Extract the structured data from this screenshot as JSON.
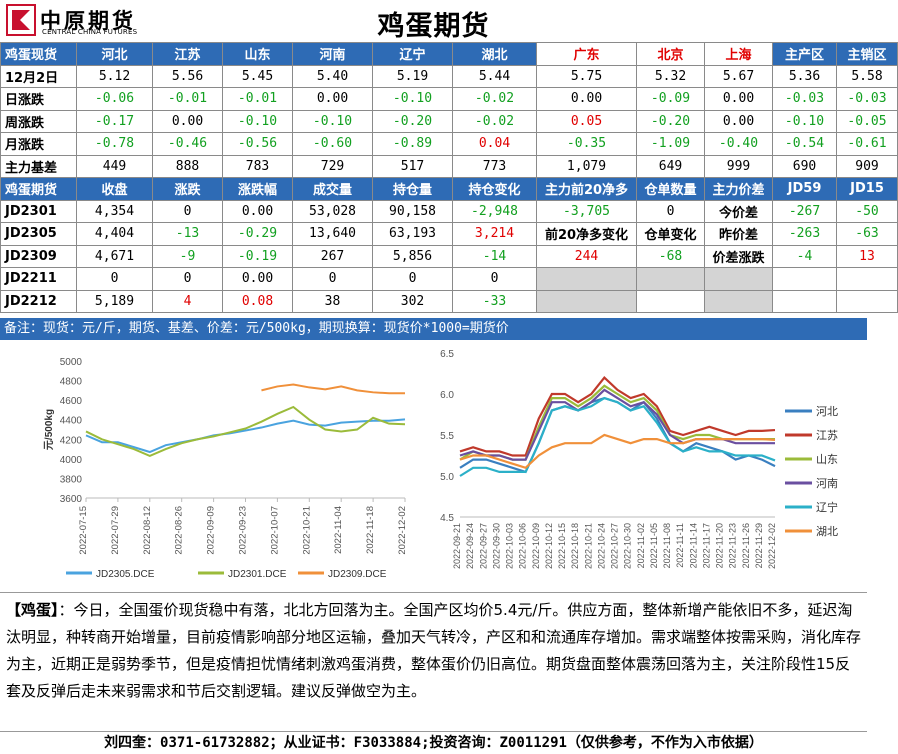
{
  "header": {
    "logo_cn": "中原期货",
    "logo_en": "CENTRAL CHINA FUTURES",
    "title": "鸡蛋期货"
  },
  "colors": {
    "header_blue": "#2e6bb5",
    "up": "#e00000",
    "down": "#12a020",
    "gray": "#d4d4d4"
  },
  "spot": {
    "header_label": "鸡蛋现货",
    "regions": [
      "河北",
      "江苏",
      "山东",
      "河南",
      "辽宁",
      "湖北",
      "广东",
      "北京",
      "上海",
      "主产区",
      "主销区"
    ],
    "red_regions": [
      "广东",
      "北京",
      "上海"
    ],
    "rows": [
      {
        "label": "12月2日",
        "values": [
          "5.12",
          "5.56",
          "5.45",
          "5.40",
          "5.19",
          "5.44",
          "5.75",
          "5.32",
          "5.67",
          "5.36",
          "5.58"
        ],
        "colored": false
      },
      {
        "label": "日涨跌",
        "values": [
          "-0.06",
          "-0.01",
          "-0.01",
          "0.00",
          "-0.10",
          "-0.02",
          "0.00",
          "-0.09",
          "0.00",
          "-0.03",
          "-0.03"
        ],
        "colored": true
      },
      {
        "label": "周涨跌",
        "values": [
          "-0.17",
          "0.00",
          "-0.10",
          "-0.10",
          "-0.20",
          "-0.02",
          "0.05",
          "-0.20",
          "0.00",
          "-0.10",
          "-0.05"
        ],
        "colored": true
      },
      {
        "label": "月涨跌",
        "values": [
          "-0.78",
          "-0.46",
          "-0.56",
          "-0.60",
          "-0.89",
          "0.04",
          "-0.35",
          "-1.09",
          "-0.40",
          "-0.54",
          "-0.61"
        ],
        "colored": true
      },
      {
        "label": "主力基差",
        "values": [
          "449",
          "888",
          "783",
          "729",
          "517",
          "773",
          "1,079",
          "649",
          "999",
          "690",
          "909"
        ],
        "colored": false
      }
    ]
  },
  "futures": {
    "headers": [
      "鸡蛋期货",
      "收盘",
      "涨跌",
      "涨跌幅",
      "成交量",
      "持仓量",
      "持仓变化",
      "主力前20净多",
      "仓单数量",
      "主力价差",
      "JD59",
      "JD15"
    ],
    "rows": [
      {
        "contract": "JD2301",
        "close": "4,354",
        "chg": "0",
        "pct": "0.00",
        "vol": "53,028",
        "oi": "90,158",
        "oi_chg": "-2,948",
        "net20": "-3,705",
        "warrant": "0",
        "label": "今价差",
        "jd59": "-267",
        "jd15": "-50"
      },
      {
        "contract": "JD2305",
        "close": "4,404",
        "chg": "-13",
        "pct": "-0.29",
        "vol": "13,640",
        "oi": "63,193",
        "oi_chg": "3,214",
        "net20": "前20净多变化",
        "warrant": "仓单变化",
        "label": "昨价差",
        "jd59": "-263",
        "jd15": "-63"
      },
      {
        "contract": "JD2309",
        "close": "4,671",
        "chg": "-9",
        "pct": "-0.19",
        "vol": "267",
        "oi": "5,856",
        "oi_chg": "-14",
        "net20": "244",
        "warrant": "-68",
        "label": "价差涨跌",
        "jd59": "-4",
        "jd15": "13"
      },
      {
        "contract": "JD2211",
        "close": "0",
        "chg": "0",
        "pct": "0.00",
        "vol": "0",
        "oi": "0",
        "oi_chg": "0",
        "net20": "",
        "warrant": "",
        "label": "",
        "jd59": "",
        "jd15": ""
      },
      {
        "contract": "JD2212",
        "close": "5,189",
        "chg": "4",
        "pct": "0.08",
        "vol": "38",
        "oi": "302",
        "oi_chg": "-33",
        "net20": "",
        "warrant": "",
        "label": "",
        "jd59": "",
        "jd15": ""
      }
    ]
  },
  "note": "备注：现货：元/斤，期货、基差、价差：元/500kg，期现换算：现货价*1000=期货价",
  "chart_data": [
    {
      "type": "line",
      "title": "",
      "ylabel": "元/500kg",
      "ylim": [
        3600,
        5000
      ],
      "yticks": [
        3600,
        3800,
        4000,
        4200,
        4400,
        4600,
        4800,
        5000
      ],
      "xticks": [
        "2022-07-15",
        "2022-07-29",
        "2022-08-12",
        "2022-08-26",
        "2022-09-09",
        "2022-09-23",
        "2022-10-07",
        "2022-10-21",
        "2022-11-04",
        "2022-11-18",
        "2022-12-02"
      ],
      "series": [
        {
          "name": "JD2305.DCE",
          "color": "#4aa3df",
          "x": [
            "2022-07-15",
            "2022-07-22",
            "2022-07-29",
            "2022-08-05",
            "2022-08-12",
            "2022-08-19",
            "2022-08-26",
            "2022-09-02",
            "2022-09-09",
            "2022-09-16",
            "2022-09-23",
            "2022-09-30",
            "2022-10-07",
            "2022-10-14",
            "2022-10-21",
            "2022-10-28",
            "2022-11-04",
            "2022-11-11",
            "2022-11-18",
            "2022-11-25",
            "2022-12-02"
          ],
          "values": [
            4240,
            4170,
            4170,
            4120,
            4070,
            4140,
            4170,
            4200,
            4240,
            4260,
            4290,
            4320,
            4360,
            4390,
            4350,
            4340,
            4370,
            4380,
            4390,
            4390,
            4404
          ]
        },
        {
          "name": "JD2301.DCE",
          "color": "#9bbb3a",
          "x": [
            "2022-07-15",
            "2022-07-22",
            "2022-07-29",
            "2022-08-05",
            "2022-08-12",
            "2022-08-19",
            "2022-08-26",
            "2022-09-02",
            "2022-09-09",
            "2022-09-16",
            "2022-09-23",
            "2022-09-30",
            "2022-10-07",
            "2022-10-14",
            "2022-10-21",
            "2022-10-28",
            "2022-11-04",
            "2022-11-11",
            "2022-11-18",
            "2022-11-25",
            "2022-12-02"
          ],
          "values": [
            4280,
            4200,
            4150,
            4100,
            4030,
            4100,
            4160,
            4200,
            4230,
            4270,
            4310,
            4380,
            4460,
            4530,
            4400,
            4300,
            4280,
            4300,
            4420,
            4360,
            4354
          ]
        },
        {
          "name": "JD2309.DCE",
          "color": "#f0903a",
          "x": [
            "2022-09-30",
            "2022-10-07",
            "2022-10-14",
            "2022-10-21",
            "2022-10-28",
            "2022-11-04",
            "2022-11-11",
            "2022-11-18",
            "2022-11-25",
            "2022-12-02"
          ],
          "values": [
            4700,
            4740,
            4760,
            4730,
            4710,
            4740,
            4700,
            4680,
            4670,
            4671
          ]
        }
      ]
    },
    {
      "type": "line",
      "title": "",
      "ylim": [
        4.5,
        6.5
      ],
      "yticks": [
        4.5,
        5.0,
        5.5,
        6.0,
        6.5
      ],
      "xticks": [
        "2022-09-21",
        "2022-09-24",
        "2022-09-27",
        "2022-09-30",
        "2022-10-03",
        "2022-10-06",
        "2022-10-09",
        "2022-10-12",
        "2022-10-15",
        "2022-10-18",
        "2022-10-21",
        "2022-10-24",
        "2022-10-27",
        "2022-10-30",
        "2022-11-02",
        "2022-11-05",
        "2022-11-08",
        "2022-11-11",
        "2022-11-14",
        "2022-11-17",
        "2022-11-20",
        "2022-11-23",
        "2022-11-26",
        "2022-11-29",
        "2022-12-02"
      ],
      "series": [
        {
          "name": "河北",
          "color": "#3a7fc0",
          "values": [
            5.1,
            5.2,
            5.2,
            5.15,
            5.1,
            5.05,
            5.4,
            5.8,
            5.85,
            5.8,
            5.9,
            5.95,
            5.9,
            5.8,
            5.9,
            5.7,
            5.4,
            5.3,
            5.4,
            5.35,
            5.3,
            5.2,
            5.25,
            5.2,
            5.12
          ]
        },
        {
          "name": "江苏",
          "color": "#c0392b",
          "values": [
            5.3,
            5.35,
            5.3,
            5.3,
            5.25,
            5.25,
            5.7,
            6.0,
            6.0,
            5.9,
            6.0,
            6.2,
            6.05,
            5.95,
            6.0,
            5.85,
            5.55,
            5.5,
            5.55,
            5.6,
            5.55,
            5.5,
            5.55,
            5.55,
            5.56
          ]
        },
        {
          "name": "山东",
          "color": "#9bbb3a",
          "values": [
            5.2,
            5.3,
            5.25,
            5.25,
            5.2,
            5.2,
            5.6,
            5.95,
            5.95,
            5.85,
            5.95,
            6.1,
            6.0,
            5.9,
            5.95,
            5.8,
            5.5,
            5.45,
            5.5,
            5.5,
            5.45,
            5.45,
            5.45,
            5.45,
            5.45
          ]
        },
        {
          "name": "河南",
          "color": "#6a4fa0",
          "values": [
            5.25,
            5.3,
            5.25,
            5.25,
            5.2,
            5.2,
            5.55,
            5.9,
            5.9,
            5.8,
            5.9,
            6.05,
            5.95,
            5.85,
            5.9,
            5.75,
            5.5,
            5.4,
            5.45,
            5.45,
            5.45,
            5.4,
            5.4,
            5.4,
            5.4
          ]
        },
        {
          "name": "辽宁",
          "color": "#2bb0c8",
          "values": [
            5.0,
            5.1,
            5.1,
            5.05,
            5.05,
            5.05,
            5.4,
            5.8,
            5.85,
            5.8,
            5.85,
            5.95,
            5.9,
            5.8,
            5.85,
            5.65,
            5.4,
            5.3,
            5.35,
            5.3,
            5.3,
            5.25,
            5.25,
            5.25,
            5.19
          ]
        },
        {
          "name": "湖北",
          "color": "#f0903a",
          "values": [
            5.2,
            5.25,
            5.25,
            5.2,
            5.15,
            5.1,
            5.25,
            5.35,
            5.4,
            5.4,
            5.4,
            5.5,
            5.45,
            5.4,
            5.45,
            5.45,
            5.4,
            5.4,
            5.45,
            5.45,
            5.45,
            5.45,
            5.45,
            5.45,
            5.44
          ]
        }
      ]
    }
  ],
  "comment": {
    "tag": "【鸡蛋】",
    "text": "：今日，全国蛋价现货稳中有落，北北方回落为主。全国产区均价5.4元/斤。供应方面，整体新增产能依旧不多，延迟淘汰明显，种转商开始增量，目前疫情影响部分地区运输，叠加天气转冷，产区和和流通库存增加。需求端整体按需采购，消化库存为主，近期正是弱势季节，但是疫情担忧情绪刺激鸡蛋消费，整体蛋价仍旧高位。期货盘面整体震荡回落为主，关注阶段性15反套及反弹后走未来弱需求和节后交割逻辑。建议反弹做空为主。"
  },
  "footer": "刘四奎：0371-61732882；从业证书：F3033884;投资咨询：Z0011291（仅供参考，不作为入市依据）"
}
